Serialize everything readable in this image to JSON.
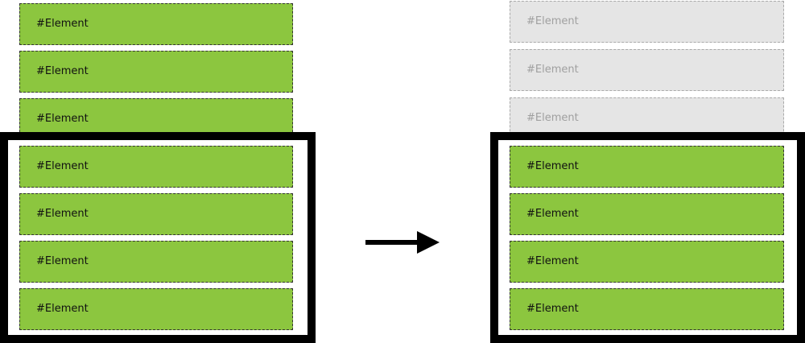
{
  "before": {
    "elements": [
      "#Element",
      "#Element",
      "#Element",
      "#Element",
      "#Element",
      "#Element",
      "#Element"
    ]
  },
  "after": {
    "elements": [
      "#Element",
      "#Element",
      "#Element",
      "#Element",
      "#Element",
      "#Element",
      "#Element"
    ]
  },
  "colors": {
    "active_fill": "#8cc63f",
    "inactive_fill": "#e5e5e5",
    "frame": "#000000"
  },
  "icons": {
    "transition": "right-arrow-icon"
  }
}
